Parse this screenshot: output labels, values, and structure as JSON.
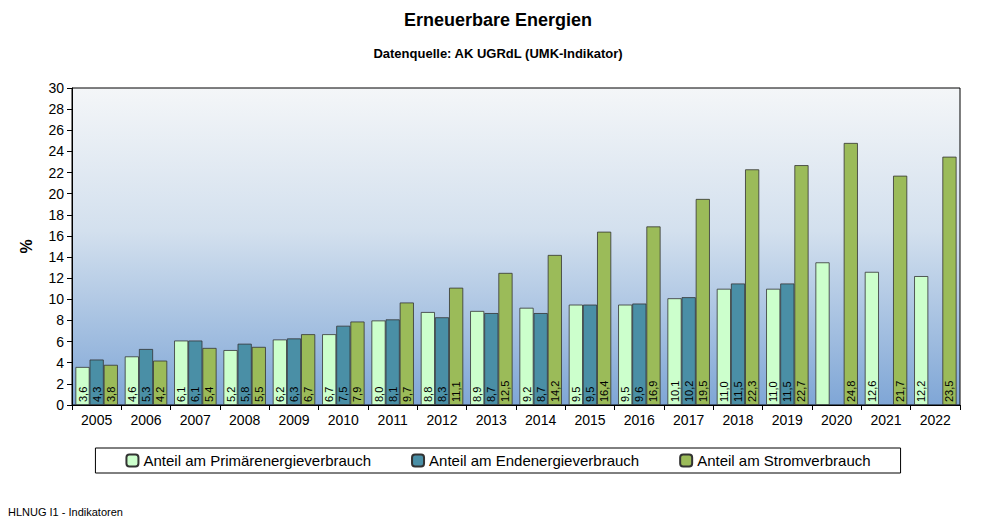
{
  "chart_data": {
    "type": "bar",
    "title": "Erneuerbare Energien",
    "subtitle": "Datenquelle: AK UGRdL (UMK-Indikator)",
    "y_label": "%",
    "annotations": [
      "HLNUG I1 - Indikatoren"
    ],
    "categories": [
      "2005",
      "2006",
      "2007",
      "2008",
      "2009",
      "2010",
      "2011",
      "2012",
      "2013",
      "2014",
      "2015",
      "2016",
      "2017",
      "2018",
      "2019",
      "2020",
      "2021",
      "2022"
    ],
    "series": [
      {
        "name": "Anteil am Primärenergieverbrauch",
        "color": "#ccffcc",
        "values": [
          3.6,
          4.6,
          6.1,
          5.2,
          6.2,
          6.7,
          8.0,
          8.8,
          8.9,
          9.2,
          9.5,
          9.5,
          10.1,
          11.0,
          11.0,
          13.5,
          12.6,
          12.2
        ],
        "value_labels": [
          "3,6",
          "4,6",
          "6,1",
          "5,2",
          "6,2",
          "6,7",
          "8,0",
          "8,8",
          "8,9",
          "9,2",
          "9,5",
          "9,5",
          "10,1",
          "11,0",
          "11,0",
          null,
          "12,6",
          "12,2"
        ]
      },
      {
        "name": "Anteil am Endenergieverbrauch",
        "color": "#4a8fa6",
        "values": [
          4.3,
          5.3,
          6.1,
          5.8,
          6.3,
          7.5,
          8.1,
          8.3,
          8.7,
          8.7,
          9.5,
          9.6,
          10.2,
          11.5,
          11.5,
          null,
          null,
          null
        ],
        "value_labels": [
          "4,3",
          "5,3",
          "6,1",
          "5,8",
          "6,3",
          "7,5",
          "8,1",
          "8,3",
          "8,7",
          "8,7",
          "9,5",
          "9,6",
          "10,2",
          "11,5",
          "11,5",
          null,
          null,
          null
        ]
      },
      {
        "name": "Anteil am Stromverbrauch",
        "color": "#9bbb59",
        "values": [
          3.8,
          4.2,
          5.4,
          5.5,
          6.7,
          7.9,
          9.7,
          11.1,
          12.5,
          14.2,
          16.4,
          16.9,
          19.5,
          22.3,
          22.7,
          24.8,
          21.7,
          23.5
        ],
        "value_labels": [
          "3,8",
          "4,2",
          "5,4",
          "5,5",
          "6,7",
          "7,9",
          "9,7",
          "11,1",
          "12,5",
          "14,2",
          "16,4",
          "16,9",
          "19,5",
          "22,3",
          "22,7",
          "24,8",
          "21,7",
          "23,5"
        ]
      }
    ],
    "ylim": [
      0,
      30
    ],
    "yticks": [
      0,
      2,
      4,
      6,
      8,
      10,
      12,
      14,
      16,
      18,
      20,
      22,
      24,
      26,
      28,
      30
    ],
    "grid": false,
    "legend": "bottom",
    "data_labels": true
  }
}
